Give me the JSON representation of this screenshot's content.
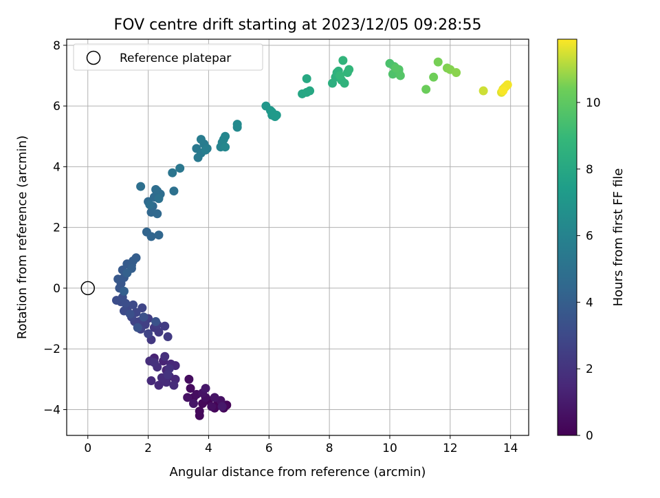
{
  "chart_data": {
    "type": "scatter",
    "title": "FOV centre drift starting at 2023/12/05 09:28:55",
    "xlabel": "Angular distance from reference (arcmin)",
    "ylabel": "Rotation from reference (arcmin)",
    "xlim": [
      -0.7,
      14.6
    ],
    "ylim": [
      -4.85,
      8.2
    ],
    "xticks": [
      0,
      2,
      4,
      6,
      8,
      10,
      12,
      14
    ],
    "yticks": [
      -4,
      -2,
      0,
      2,
      4,
      6,
      8
    ],
    "grid": true,
    "legend": {
      "placement": "top-left",
      "entries": [
        {
          "label": "Reference platepar",
          "marker": "open-circle"
        }
      ]
    },
    "reference_point": {
      "x": 0,
      "y": 0
    },
    "colorbar": {
      "label": "Hours from first FF file",
      "colormap": "viridis",
      "range": [
        0,
        11.9
      ],
      "ticks": [
        0,
        2,
        4,
        6,
        8,
        10
      ]
    },
    "series": [
      {
        "points": [
          {
            "x": 4.0,
            "y": -3.7,
            "t": 0.1
          },
          {
            "x": 4.3,
            "y": -3.8,
            "t": 0.1
          },
          {
            "x": 4.5,
            "y": -3.95,
            "t": 0.15
          },
          {
            "x": 4.6,
            "y": -3.85,
            "t": 0.2
          },
          {
            "x": 4.2,
            "y": -3.95,
            "t": 0.2
          },
          {
            "x": 3.8,
            "y": -3.8,
            "t": 0.25
          },
          {
            "x": 3.7,
            "y": -4.2,
            "t": 0.3
          },
          {
            "x": 3.7,
            "y": -4.05,
            "t": 0.3
          },
          {
            "x": 3.5,
            "y": -3.6,
            "t": 0.35
          },
          {
            "x": 3.4,
            "y": -3.3,
            "t": 0.4
          },
          {
            "x": 3.35,
            "y": -3.0,
            "t": 0.45
          },
          {
            "x": 3.6,
            "y": -3.5,
            "t": 0.5
          },
          {
            "x": 3.9,
            "y": -3.6,
            "t": 0.5
          },
          {
            "x": 4.1,
            "y": -3.9,
            "t": 0.55
          },
          {
            "x": 4.4,
            "y": -3.7,
            "t": 0.6
          },
          {
            "x": 3.3,
            "y": -3.6,
            "t": 0.65
          },
          {
            "x": 3.8,
            "y": -3.45,
            "t": 0.7
          },
          {
            "x": 4.2,
            "y": -3.6,
            "t": 0.75
          },
          {
            "x": 3.5,
            "y": -3.8,
            "t": 0.8
          },
          {
            "x": 3.9,
            "y": -3.3,
            "t": 0.85
          },
          {
            "x": 4.45,
            "y": -3.9,
            "t": 0.9
          },
          {
            "x": 2.2,
            "y": -2.3,
            "t": 1.3
          },
          {
            "x": 2.5,
            "y": -2.4,
            "t": 1.35
          },
          {
            "x": 2.6,
            "y": -2.7,
            "t": 1.4
          },
          {
            "x": 2.7,
            "y": -2.9,
            "t": 1.45
          },
          {
            "x": 2.9,
            "y": -3.0,
            "t": 1.5
          },
          {
            "x": 2.9,
            "y": -2.55,
            "t": 1.55
          },
          {
            "x": 2.75,
            "y": -2.5,
            "t": 1.55
          },
          {
            "x": 2.1,
            "y": -3.05,
            "t": 1.6
          },
          {
            "x": 2.35,
            "y": -3.2,
            "t": 1.6
          },
          {
            "x": 2.6,
            "y": -3.1,
            "t": 1.65
          },
          {
            "x": 2.45,
            "y": -2.95,
            "t": 1.7
          },
          {
            "x": 2.85,
            "y": -3.2,
            "t": 1.7
          },
          {
            "x": 2.05,
            "y": -2.4,
            "t": 1.75
          },
          {
            "x": 2.3,
            "y": -2.6,
            "t": 1.8
          },
          {
            "x": 2.55,
            "y": -2.25,
            "t": 1.85
          },
          {
            "x": 2.7,
            "y": -2.65,
            "t": 1.9
          },
          {
            "x": 2.2,
            "y": -2.45,
            "t": 1.95
          },
          {
            "x": 2.65,
            "y": -2.85,
            "t": 2.0
          },
          {
            "x": 2.1,
            "y": -1.7,
            "t": 2.2
          },
          {
            "x": 2.2,
            "y": -1.3,
            "t": 2.25
          },
          {
            "x": 2.35,
            "y": -1.45,
            "t": 2.3
          },
          {
            "x": 2.65,
            "y": -1.6,
            "t": 2.35
          },
          {
            "x": 2.55,
            "y": -1.25,
            "t": 2.4
          },
          {
            "x": 2.3,
            "y": -1.2,
            "t": 2.45
          },
          {
            "x": 2.0,
            "y": -1.0,
            "t": 2.5
          },
          {
            "x": 1.9,
            "y": -1.2,
            "t": 2.55
          },
          {
            "x": 1.7,
            "y": -1.1,
            "t": 2.6
          },
          {
            "x": 1.75,
            "y": -1.35,
            "t": 2.65
          },
          {
            "x": 1.55,
            "y": -1.1,
            "t": 2.7
          },
          {
            "x": 2.0,
            "y": -1.5,
            "t": 2.75
          },
          {
            "x": 1.8,
            "y": -0.65,
            "t": 2.8
          },
          {
            "x": 1.6,
            "y": -0.8,
            "t": 2.85
          },
          {
            "x": 1.45,
            "y": -0.95,
            "t": 2.9
          },
          {
            "x": 1.3,
            "y": -0.7,
            "t": 2.95
          },
          {
            "x": 1.5,
            "y": -0.55,
            "t": 3.0
          },
          {
            "x": 1.2,
            "y": -0.75,
            "t": 3.05
          },
          {
            "x": 1.1,
            "y": -0.45,
            "t": 3.1
          },
          {
            "x": 0.95,
            "y": -0.4,
            "t": 3.15
          },
          {
            "x": 1.25,
            "y": -0.5,
            "t": 3.2
          },
          {
            "x": 1.15,
            "y": -0.3,
            "t": 3.25
          },
          {
            "x": 1.4,
            "y": -0.85,
            "t": 3.3
          },
          {
            "x": 1.85,
            "y": -0.95,
            "t": 3.35
          },
          {
            "x": 2.25,
            "y": -1.1,
            "t": 3.4
          },
          {
            "x": 1.65,
            "y": -1.3,
            "t": 3.45
          },
          {
            "x": 1.05,
            "y": 0.0,
            "t": 3.6
          },
          {
            "x": 1.1,
            "y": 0.15,
            "t": 3.65
          },
          {
            "x": 1.0,
            "y": 0.3,
            "t": 3.7
          },
          {
            "x": 1.2,
            "y": 0.35,
            "t": 3.75
          },
          {
            "x": 1.15,
            "y": 0.6,
            "t": 3.8
          },
          {
            "x": 1.3,
            "y": 0.8,
            "t": 3.85
          },
          {
            "x": 1.45,
            "y": 0.75,
            "t": 3.9
          },
          {
            "x": 1.5,
            "y": 0.9,
            "t": 3.95
          },
          {
            "x": 1.6,
            "y": 1.0,
            "t": 4.0
          },
          {
            "x": 1.45,
            "y": 0.65,
            "t": 4.05
          },
          {
            "x": 1.2,
            "y": -0.1,
            "t": 4.1
          },
          {
            "x": 1.3,
            "y": 0.5,
            "t": 4.15
          },
          {
            "x": 1.95,
            "y": 1.85,
            "t": 4.3
          },
          {
            "x": 2.1,
            "y": 1.7,
            "t": 4.35
          },
          {
            "x": 2.35,
            "y": 1.75,
            "t": 4.4
          },
          {
            "x": 2.1,
            "y": 2.5,
            "t": 4.45
          },
          {
            "x": 2.3,
            "y": 2.45,
            "t": 4.5
          },
          {
            "x": 2.15,
            "y": 2.7,
            "t": 4.55
          },
          {
            "x": 2.0,
            "y": 2.85,
            "t": 4.6
          },
          {
            "x": 2.2,
            "y": 3.0,
            "t": 4.65
          },
          {
            "x": 2.3,
            "y": 3.2,
            "t": 4.7
          },
          {
            "x": 2.4,
            "y": 3.1,
            "t": 4.75
          },
          {
            "x": 2.25,
            "y": 3.25,
            "t": 4.8
          },
          {
            "x": 2.05,
            "y": 2.75,
            "t": 4.85
          },
          {
            "x": 1.75,
            "y": 3.35,
            "t": 4.9
          },
          {
            "x": 2.85,
            "y": 3.2,
            "t": 4.95
          },
          {
            "x": 2.35,
            "y": 2.95,
            "t": 5.0
          },
          {
            "x": 2.8,
            "y": 3.8,
            "t": 5.2
          },
          {
            "x": 3.05,
            "y": 3.95,
            "t": 5.3
          },
          {
            "x": 3.6,
            "y": 4.6,
            "t": 5.4
          },
          {
            "x": 3.65,
            "y": 4.3,
            "t": 5.45
          },
          {
            "x": 3.75,
            "y": 4.45,
            "t": 5.5
          },
          {
            "x": 3.85,
            "y": 4.75,
            "t": 5.55
          },
          {
            "x": 3.75,
            "y": 4.9,
            "t": 5.6
          },
          {
            "x": 3.95,
            "y": 4.6,
            "t": 5.65
          },
          {
            "x": 3.9,
            "y": 4.55,
            "t": 5.7
          },
          {
            "x": 4.4,
            "y": 4.65,
            "t": 6.0
          },
          {
            "x": 4.45,
            "y": 4.8,
            "t": 6.05
          },
          {
            "x": 4.5,
            "y": 4.9,
            "t": 6.1
          },
          {
            "x": 4.55,
            "y": 5.0,
            "t": 6.15
          },
          {
            "x": 4.55,
            "y": 4.65,
            "t": 6.2
          },
          {
            "x": 4.95,
            "y": 5.3,
            "t": 6.3
          },
          {
            "x": 4.95,
            "y": 5.4,
            "t": 6.35
          },
          {
            "x": 5.9,
            "y": 6.0,
            "t": 7.0
          },
          {
            "x": 6.05,
            "y": 5.85,
            "t": 7.05
          },
          {
            "x": 6.1,
            "y": 5.7,
            "t": 7.1
          },
          {
            "x": 6.2,
            "y": 5.65,
            "t": 7.15
          },
          {
            "x": 6.1,
            "y": 5.8,
            "t": 7.2
          },
          {
            "x": 6.25,
            "y": 5.7,
            "t": 7.25
          },
          {
            "x": 7.1,
            "y": 6.4,
            "t": 7.9
          },
          {
            "x": 7.25,
            "y": 6.45,
            "t": 7.95
          },
          {
            "x": 7.35,
            "y": 6.5,
            "t": 8.0
          },
          {
            "x": 7.25,
            "y": 6.9,
            "t": 8.05
          },
          {
            "x": 8.1,
            "y": 6.75,
            "t": 8.4
          },
          {
            "x": 8.2,
            "y": 6.95,
            "t": 8.45
          },
          {
            "x": 8.25,
            "y": 7.1,
            "t": 8.5
          },
          {
            "x": 8.3,
            "y": 7.15,
            "t": 8.55
          },
          {
            "x": 8.4,
            "y": 6.85,
            "t": 8.6
          },
          {
            "x": 8.5,
            "y": 6.75,
            "t": 8.65
          },
          {
            "x": 8.45,
            "y": 7.5,
            "t": 8.7
          },
          {
            "x": 8.6,
            "y": 7.1,
            "t": 8.75
          },
          {
            "x": 8.65,
            "y": 7.2,
            "t": 8.8
          },
          {
            "x": 8.35,
            "y": 7.0,
            "t": 8.85
          },
          {
            "x": 10.0,
            "y": 7.4,
            "t": 9.5
          },
          {
            "x": 10.15,
            "y": 7.3,
            "t": 9.55
          },
          {
            "x": 10.1,
            "y": 7.05,
            "t": 9.6
          },
          {
            "x": 10.3,
            "y": 7.1,
            "t": 9.65
          },
          {
            "x": 10.3,
            "y": 7.2,
            "t": 9.7
          },
          {
            "x": 10.35,
            "y": 7.0,
            "t": 9.75
          },
          {
            "x": 10.2,
            "y": 7.25,
            "t": 9.8
          },
          {
            "x": 11.2,
            "y": 6.55,
            "t": 10.3
          },
          {
            "x": 11.45,
            "y": 6.95,
            "t": 10.4
          },
          {
            "x": 11.6,
            "y": 7.45,
            "t": 10.5
          },
          {
            "x": 11.9,
            "y": 7.25,
            "t": 10.6
          },
          {
            "x": 12.0,
            "y": 7.2,
            "t": 10.65
          },
          {
            "x": 12.2,
            "y": 7.1,
            "t": 10.7
          },
          {
            "x": 13.1,
            "y": 6.5,
            "t": 11.4
          },
          {
            "x": 13.7,
            "y": 6.45,
            "t": 11.6
          },
          {
            "x": 13.75,
            "y": 6.55,
            "t": 11.65
          },
          {
            "x": 13.8,
            "y": 6.6,
            "t": 11.7
          },
          {
            "x": 13.85,
            "y": 6.65,
            "t": 11.75
          },
          {
            "x": 13.9,
            "y": 6.7,
            "t": 11.8
          },
          {
            "x": 13.75,
            "y": 6.5,
            "t": 11.85
          }
        ]
      }
    ]
  }
}
